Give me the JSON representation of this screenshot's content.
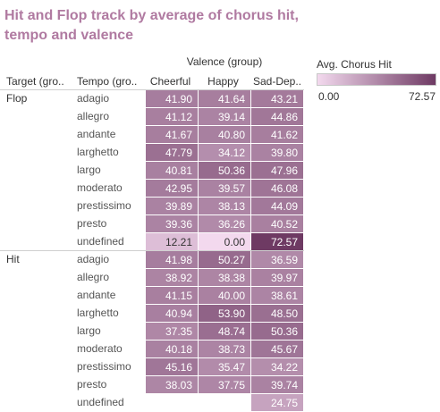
{
  "chart_data": {
    "type": "heatmap",
    "title": "Hit and Flop track by average of chorus hit, tempo  and valence",
    "column_group_label": "Valence (group)",
    "row_header_labels": [
      "Target (gro..",
      "Tempo (gro.."
    ],
    "columns": [
      "Cheerful",
      "Happy",
      "Sad-Dep.."
    ],
    "legend": {
      "title": "Avg. Chorus Hit",
      "min": 0.0,
      "max": 72.57,
      "min_label": "0.00",
      "max_label": "72.57"
    },
    "colors": {
      "low": "#f3d9ee",
      "high": "#6e3a63"
    },
    "groups": [
      {
        "target": "Flop",
        "rows": [
          {
            "tempo": "adagio",
            "values": [
              41.9,
              41.64,
              43.21
            ]
          },
          {
            "tempo": "allegro",
            "values": [
              41.12,
              39.14,
              44.86
            ]
          },
          {
            "tempo": "andante",
            "values": [
              41.67,
              40.8,
              41.62
            ]
          },
          {
            "tempo": "larghetto",
            "values": [
              47.79,
              34.12,
              39.8
            ]
          },
          {
            "tempo": "largo",
            "values": [
              40.81,
              50.36,
              47.96
            ]
          },
          {
            "tempo": "moderato",
            "values": [
              42.95,
              39.57,
              46.08
            ]
          },
          {
            "tempo": "prestissimo",
            "values": [
              39.89,
              38.13,
              44.09
            ]
          },
          {
            "tempo": "presto",
            "values": [
              39.36,
              36.26,
              40.52
            ]
          },
          {
            "tempo": "undefined",
            "values": [
              12.21,
              0.0,
              72.57
            ]
          }
        ]
      },
      {
        "target": "Hit",
        "rows": [
          {
            "tempo": "adagio",
            "values": [
              41.98,
              50.27,
              36.59
            ]
          },
          {
            "tempo": "allegro",
            "values": [
              38.92,
              38.38,
              39.97
            ]
          },
          {
            "tempo": "andante",
            "values": [
              41.15,
              40.0,
              38.61
            ]
          },
          {
            "tempo": "larghetto",
            "values": [
              40.94,
              53.9,
              48.5
            ]
          },
          {
            "tempo": "largo",
            "values": [
              37.35,
              48.74,
              50.36
            ]
          },
          {
            "tempo": "moderato",
            "values": [
              40.18,
              38.73,
              45.67
            ]
          },
          {
            "tempo": "prestissimo",
            "values": [
              45.16,
              35.47,
              34.22
            ]
          },
          {
            "tempo": "presto",
            "values": [
              38.03,
              37.75,
              39.74
            ]
          },
          {
            "tempo": "undefined",
            "values": [
              null,
              null,
              24.75
            ]
          }
        ]
      }
    ]
  }
}
